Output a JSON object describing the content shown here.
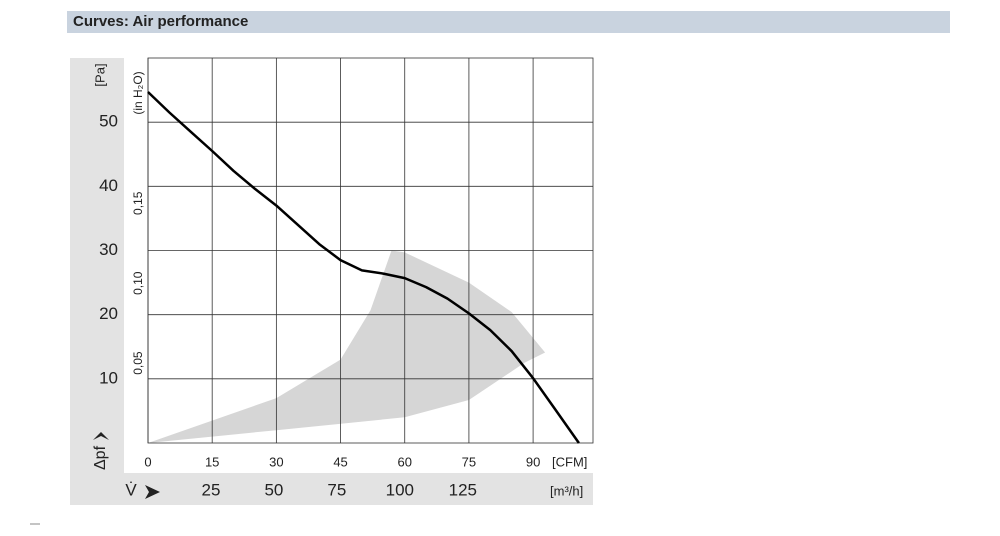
{
  "header": {
    "title": "Curves: Air performance"
  },
  "chart_data": {
    "type": "line",
    "x_label": "[CFM]",
    "x2_label": "[m³/h]",
    "x2_symbol": "V̇",
    "y_label": "[Pa]",
    "y2_label": "(in H₂O)",
    "y_symbol": "Δpf",
    "xlim": [
      0,
      104
    ],
    "xticks": [
      0,
      15,
      30,
      45,
      60,
      75,
      90
    ],
    "x2lim": [
      0,
      176.7
    ],
    "x2ticks": [
      25,
      50,
      75,
      100,
      125
    ],
    "ylim": [
      0,
      60
    ],
    "yticks": [
      10,
      20,
      30,
      40,
      50
    ],
    "y2lim": [
      0,
      0.2409
    ],
    "y2ticks": [
      {
        "value": 0.05,
        "label": "0,05"
      },
      {
        "value": 0.1,
        "label": "0,10"
      },
      {
        "value": 0.15,
        "label": "0,15"
      }
    ],
    "grid": true,
    "series": [
      {
        "color": "#d6d6d6",
        "fill": true,
        "x": [
          0,
          30,
          45,
          52,
          56.9,
          60,
          75,
          85,
          92.8,
          88,
          75,
          60,
          30,
          0
        ],
        "values": [
          0,
          7,
          13,
          20.7,
          30,
          29.7,
          25,
          20.4,
          14.1,
          12.5,
          6.7,
          4,
          2,
          0
        ]
      },
      {
        "color": "#000000",
        "fill": false,
        "x": [
          0,
          5,
          10,
          15,
          20,
          25,
          30,
          35,
          40,
          45,
          50,
          55,
          60,
          65,
          70,
          75,
          80,
          85,
          90,
          95,
          100.7
        ],
        "values": [
          54.7,
          51.5,
          48.5,
          45.5,
          42.4,
          39.6,
          37,
          34,
          31,
          28.5,
          26.9,
          26.4,
          25.7,
          24.3,
          22.5,
          20.2,
          17.6,
          14.3,
          10.1,
          5.4,
          0
        ]
      }
    ]
  }
}
